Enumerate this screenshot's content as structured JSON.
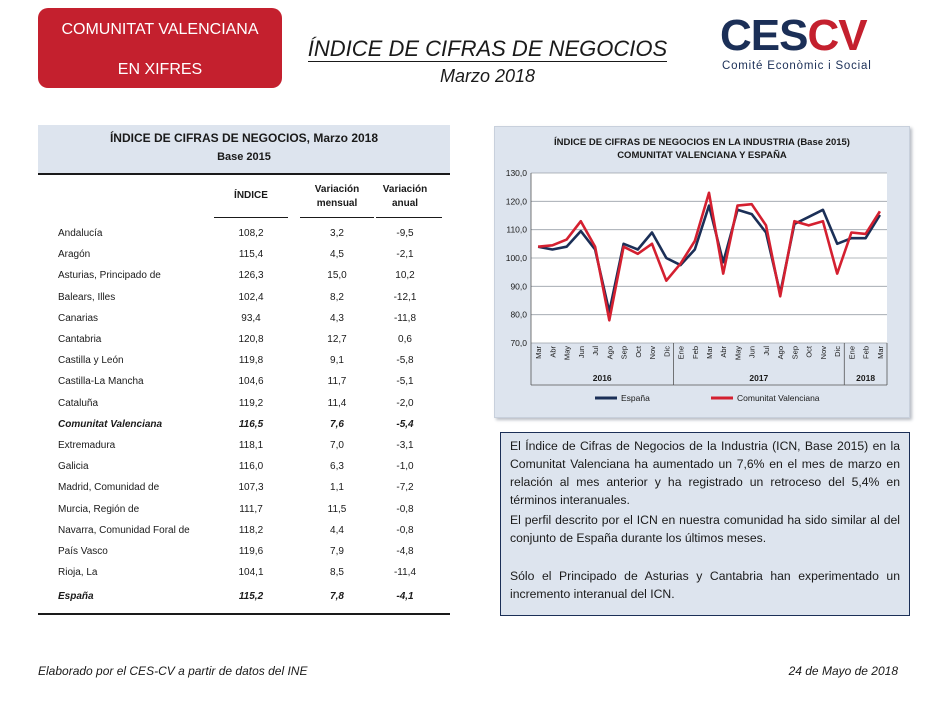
{
  "header": {
    "badge_line1": "COMUNITAT VALENCIANA",
    "badge_line2": "EN XIFRES",
    "title": "ÍNDICE DE CIFRAS DE NEGOCIOS",
    "subtitle": "Marzo 2018",
    "logo_ces": "CES",
    "logo_cv": "CV",
    "logo_tagline": "Comité Econòmic i Social",
    "brand_colors": {
      "red": "#c4202e",
      "navy": "#1b2f57"
    }
  },
  "table": {
    "title": "ÍNDICE DE CIFRAS DE NEGOCIOS, Marzo 2018",
    "subtitle": "Base 2015",
    "columns": [
      "ÍNDICE",
      "Variación mensual",
      "Variación anual"
    ],
    "col_indice": "ÍNDICE",
    "col_mensual_1": "Variación",
    "col_mensual_2": "mensual",
    "col_anual_1": "Variación",
    "col_anual_2": "anual",
    "rows": [
      {
        "region": "Andalucía",
        "indice": "108,2",
        "mensual": "3,2",
        "anual": "-9,5"
      },
      {
        "region": "Aragón",
        "indice": "115,4",
        "mensual": "4,5",
        "anual": "-2,1"
      },
      {
        "region": "Asturias, Principado de",
        "indice": "126,3",
        "mensual": "15,0",
        "anual": "10,2"
      },
      {
        "region": "Balears, Illes",
        "indice": "102,4",
        "mensual": "8,2",
        "anual": "-12,1"
      },
      {
        "region": "Canarias",
        "indice": "93,4",
        "mensual": "4,3",
        "anual": "-11,8"
      },
      {
        "region": "Cantabria",
        "indice": "120,8",
        "mensual": "12,7",
        "anual": "0,6"
      },
      {
        "region": "Castilla y León",
        "indice": "119,8",
        "mensual": "9,1",
        "anual": "-5,8"
      },
      {
        "region": "Castilla-La Mancha",
        "indice": "104,6",
        "mensual": "11,7",
        "anual": "-5,1"
      },
      {
        "region": "Cataluña",
        "indice": "119,2",
        "mensual": "11,4",
        "anual": "-2,0"
      },
      {
        "region": "Comunitat Valenciana",
        "indice": "116,5",
        "mensual": "7,6",
        "anual": "-5,4",
        "highlight": true
      },
      {
        "region": "Extremadura",
        "indice": "118,1",
        "mensual": "7,0",
        "anual": "-3,1"
      },
      {
        "region": "Galicia",
        "indice": "116,0",
        "mensual": "6,3",
        "anual": "-1,0"
      },
      {
        "region": "Madrid, Comunidad de",
        "indice": "107,3",
        "mensual": "1,1",
        "anual": "-7,2"
      },
      {
        "region": "Murcia, Región de",
        "indice": "111,7",
        "mensual": "11,5",
        "anual": "-0,8"
      },
      {
        "region": "Navarra, Comunidad Foral de",
        "indice": "118,2",
        "mensual": "4,4",
        "anual": "-0,8"
      },
      {
        "region": "País Vasco",
        "indice": "119,6",
        "mensual": "7,9",
        "anual": "-4,8"
      },
      {
        "region": "Rioja, La",
        "indice": "104,1",
        "mensual": "8,5",
        "anual": "-11,4"
      },
      {
        "region": "España",
        "indice": "115,2",
        "mensual": "7,8",
        "anual": "-4,1",
        "highlight": true
      }
    ]
  },
  "chart_data": {
    "type": "line",
    "title": "ÍNDICE DE CIFRAS DE NEGOCIOS EN LA INDUSTRIA (Base 2015)",
    "subtitle": "COMUNITAT VALENCIANA Y ESPAÑA",
    "x": [
      "Mar",
      "Abr",
      "May",
      "Jun",
      "Jul",
      "Ago",
      "Sep",
      "Oct",
      "Nov",
      "Dic",
      "Ene",
      "Feb",
      "Mar",
      "Abr",
      "May",
      "Jun",
      "Jul",
      "Ago",
      "Sep",
      "Oct",
      "Nov",
      "Dic",
      "Ene",
      "Feb",
      "Mar"
    ],
    "year_groups": [
      {
        "label": "2016",
        "count": 10
      },
      {
        "label": "2017",
        "count": 12
      },
      {
        "label": "2018",
        "count": 3
      }
    ],
    "ylim": [
      70,
      130
    ],
    "yticks": [
      "70,0",
      "80,0",
      "90,0",
      "100,0",
      "110,0",
      "120,0",
      "130,0"
    ],
    "grid": true,
    "legend_position": "bottom",
    "series": [
      {
        "name": "España",
        "color": "#1b2f57",
        "values": [
          104.0,
          103.0,
          104.0,
          109.5,
          103.0,
          81.0,
          105.0,
          103.0,
          109.0,
          100.0,
          97.5,
          103.0,
          118.5,
          98.5,
          117.0,
          115.5,
          109.0,
          87.5,
          112.0,
          114.5,
          117.0,
          105.0,
          107.0,
          107.0,
          115.2
        ]
      },
      {
        "name": "Comunitat Valenciana",
        "color": "#d42030",
        "values": [
          104.0,
          104.5,
          106.5,
          113.0,
          104.0,
          78.0,
          104.0,
          101.5,
          105.0,
          92.0,
          98.0,
          106.0,
          123.0,
          94.5,
          118.5,
          119.0,
          111.5,
          86.5,
          113.0,
          111.5,
          113.0,
          94.5,
          109.0,
          108.5,
          116.5
        ]
      }
    ]
  },
  "summary": {
    "p1": "El Índice de Cifras de Negocios de la Industria (ICN, Base 2015) en la Comunitat Valenciana ha aumentado un 7,6% en el mes de marzo en relación al mes anterior y ha registrado un retroceso del 5,4% en términos interanuales.",
    "p2": "El perfil descrito por el ICN en nuestra comunidad ha sido similar al del conjunto de España durante los últimos meses.",
    "p3": "Sólo el Principado de Asturias y Cantabria han experimentado un incremento interanual del ICN."
  },
  "footer": {
    "source": "Elaborado por el CES-CV a partir de datos del INE",
    "date": "24  de Mayo de 2018"
  }
}
